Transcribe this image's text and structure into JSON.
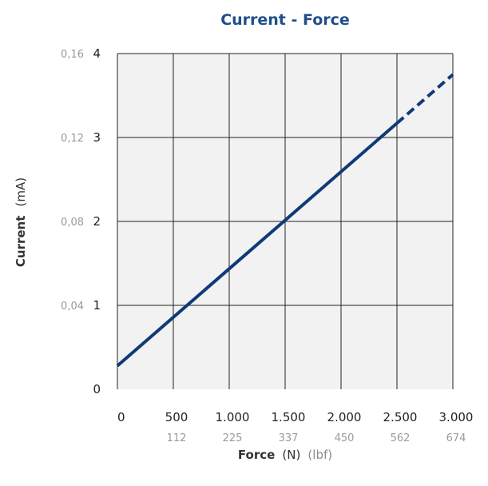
{
  "chart_data": {
    "type": "line",
    "title": "Current - Force",
    "xlabel": {
      "bold": "Force",
      "unit": "(N)",
      "secondary_unit": "(lbf)"
    },
    "ylabel": {
      "bold": "Current",
      "unit": "(mA)"
    },
    "x_ticks": [
      "0",
      "500",
      "1.000",
      "1.500",
      "2.000",
      "2.500",
      "3.000"
    ],
    "x_secondary_ticks": [
      "",
      "112",
      "225",
      "337",
      "450",
      "562",
      "674"
    ],
    "y_ticks": [
      "0",
      "1",
      "2",
      "3",
      "4"
    ],
    "y_secondary_ticks": [
      "",
      "0,04",
      "0,08",
      "0,12",
      "0,16"
    ],
    "xlim": [
      0,
      3000
    ],
    "ylim": [
      0,
      4
    ],
    "grid": true,
    "series": [
      {
        "style": "solid",
        "color": "#0f3a78",
        "x": [
          0,
          2500
        ],
        "y": [
          0.28,
          3.17
        ]
      },
      {
        "style": "dashed",
        "color": "#0f3a78",
        "x": [
          2500,
          3000
        ],
        "y": [
          3.17,
          3.75
        ]
      }
    ],
    "colors": {
      "plot_background": "#f2f2f2",
      "grid": "#222222",
      "title": "#1f4e8c"
    }
  }
}
